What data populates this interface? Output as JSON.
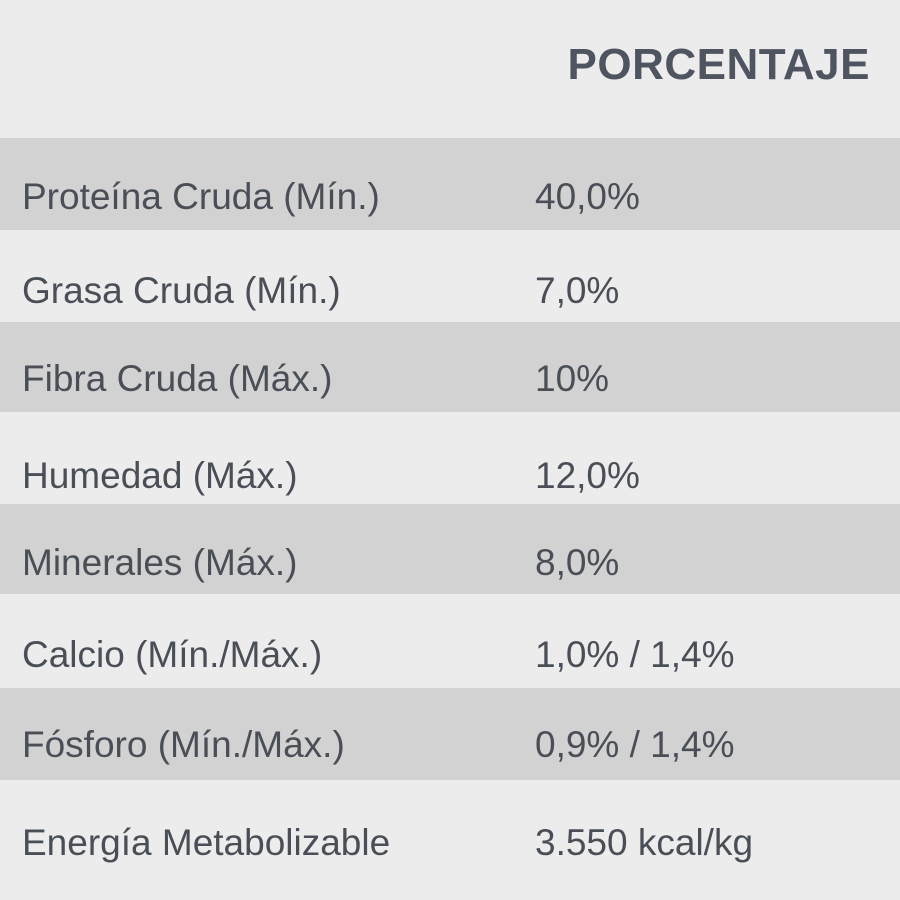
{
  "header": {
    "label": "PORCENTAJE"
  },
  "rows": [
    {
      "name": "Proteína Cruda (Mín.)",
      "value": "40,0%"
    },
    {
      "name": "Grasa Cruda (Mín.)",
      "value": "7,0%"
    },
    {
      "name": "Fibra Cruda (Máx.)",
      "value": "10%"
    },
    {
      "name": "Humedad (Máx.)",
      "value": "12,0%"
    },
    {
      "name": "Minerales (Máx.)",
      "value": "8,0%"
    },
    {
      "name": "Calcio (Mín./Máx.)",
      "value": "1,0% / 1,4%"
    },
    {
      "name": "Fósforo (Mín./Máx.)",
      "value": "0,9% / 1,4%"
    },
    {
      "name": "Energía Metabolizable",
      "value": "3.550 kcal/kg"
    }
  ],
  "colors": {
    "background": "#ececec",
    "shaded_row": "#d2d2d2",
    "text": "#4a4f57"
  }
}
